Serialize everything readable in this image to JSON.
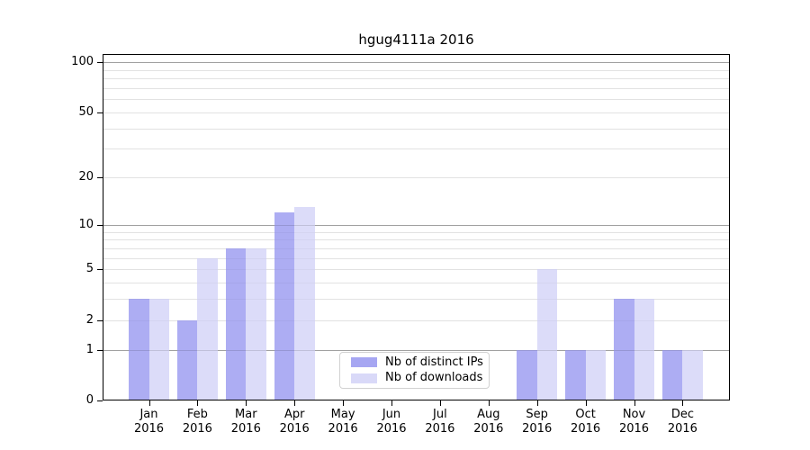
{
  "chart_data": {
    "type": "bar",
    "title": "hgug4111a 2016",
    "categories": [
      "Jan",
      "Feb",
      "Mar",
      "Apr",
      "May",
      "Jun",
      "Jul",
      "Aug",
      "Sep",
      "Oct",
      "Nov",
      "Dec"
    ],
    "category_subline": "2016",
    "series": [
      {
        "name": "Nb of distinct IPs",
        "color": "#a6a6f2",
        "values": [
          3,
          2,
          7,
          12,
          0,
          0,
          0,
          0,
          1,
          1,
          3,
          1
        ]
      },
      {
        "name": "Nb of downloads",
        "color": "#d9d9f8",
        "values": [
          3,
          6,
          7,
          13,
          0,
          0,
          0,
          0,
          5,
          1,
          3,
          1
        ]
      }
    ],
    "y_axis": {
      "scale": "log1p",
      "ylim": [
        0,
        100
      ],
      "tick_values": [
        0,
        1,
        2,
        5,
        10,
        20,
        50,
        100
      ],
      "tick_labels": [
        "0",
        "1",
        "2",
        "5",
        "10",
        "20",
        "50",
        "100"
      ],
      "major_gridlines": [
        1,
        10,
        100
      ],
      "minor_gridlines": [
        2,
        3,
        4,
        5,
        6,
        7,
        8,
        9,
        20,
        30,
        40,
        50,
        60,
        70,
        80,
        90
      ]
    },
    "xlabel": "",
    "ylabel": "",
    "grid": "on",
    "legend_position": "inside-bottom-center"
  },
  "colors": {
    "background": "#ffffff",
    "axis": "#000000",
    "major_grid": "#b3b3b3",
    "minor_grid": "#eaeaea",
    "legend_border": "#d2d2d2",
    "text": "#000000"
  }
}
